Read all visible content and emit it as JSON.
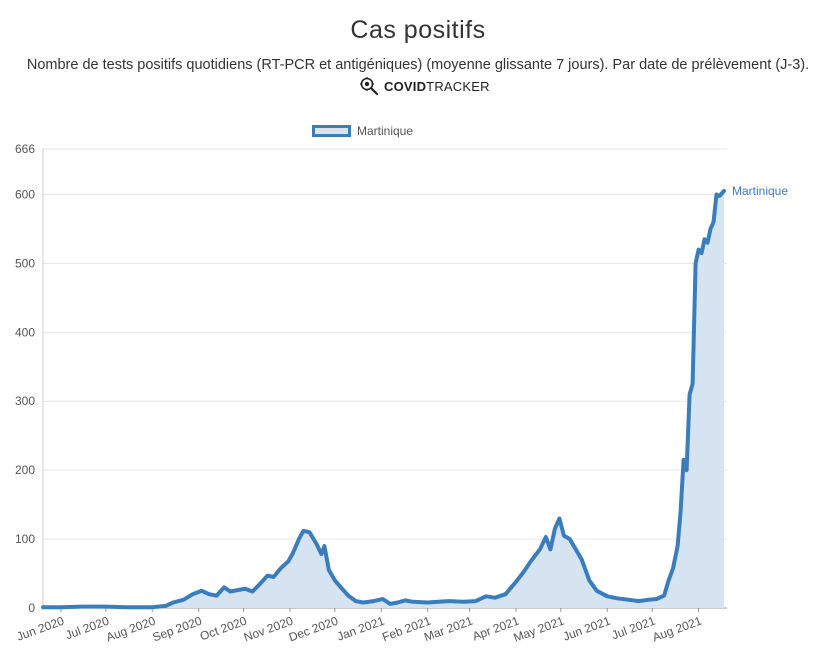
{
  "header": {
    "title": "Cas positifs",
    "subtitle": "Nombre de tests positifs quotidiens (RT-PCR et antigéniques) (moyenne glissante 7 jours). Par date de prélèvement (J-3).",
    "brand_bold": "COVID",
    "brand_light": "TRACKER",
    "brand_icon": "virus-magnifier-icon"
  },
  "colors": {
    "line": "#3a7dbd",
    "fill": "#d6e4f1",
    "grid": "#e6e6e6"
  },
  "chart_data": {
    "type": "area",
    "ylim": [
      0,
      666
    ],
    "yticks": [
      0,
      100,
      200,
      300,
      400,
      500,
      600,
      666
    ],
    "xticks": [
      "Jun 2020",
      "Jul 2020",
      "Aug 2020",
      "Sep 2020",
      "Oct 2020",
      "Nov 2020",
      "Dec 2020",
      "Jan 2021",
      "Feb 2021",
      "Mar 2021",
      "Apr 2021",
      "May 2021",
      "Jun 2021",
      "Jul 2021",
      "Aug 2021"
    ],
    "x_range": [
      "2020-05-20",
      "2021-08-20"
    ],
    "grid": true,
    "legend_position": "top",
    "series": [
      {
        "name": "Martinique",
        "points": [
          [
            "2020-05-20",
            1
          ],
          [
            "2020-06-01",
            1
          ],
          [
            "2020-06-15",
            2
          ],
          [
            "2020-07-01",
            2
          ],
          [
            "2020-07-15",
            1
          ],
          [
            "2020-08-01",
            1
          ],
          [
            "2020-08-10",
            3
          ],
          [
            "2020-08-15",
            8
          ],
          [
            "2020-08-22",
            12
          ],
          [
            "2020-08-28",
            20
          ],
          [
            "2020-09-03",
            25
          ],
          [
            "2020-09-08",
            20
          ],
          [
            "2020-09-13",
            18
          ],
          [
            "2020-09-18",
            30
          ],
          [
            "2020-09-22",
            24
          ],
          [
            "2020-09-27",
            26
          ],
          [
            "2020-10-02",
            28
          ],
          [
            "2020-10-07",
            24
          ],
          [
            "2020-10-12",
            35
          ],
          [
            "2020-10-17",
            47
          ],
          [
            "2020-10-21",
            45
          ],
          [
            "2020-10-26",
            58
          ],
          [
            "2020-10-31",
            68
          ],
          [
            "2020-11-03",
            80
          ],
          [
            "2020-11-07",
            100
          ],
          [
            "2020-11-10",
            112
          ],
          [
            "2020-11-14",
            110
          ],
          [
            "2020-11-19",
            92
          ],
          [
            "2020-11-22",
            78
          ],
          [
            "2020-11-24",
            90
          ],
          [
            "2020-11-27",
            55
          ],
          [
            "2020-12-01",
            40
          ],
          [
            "2020-12-05",
            30
          ],
          [
            "2020-12-10",
            18
          ],
          [
            "2020-12-15",
            10
          ],
          [
            "2020-12-20",
            8
          ],
          [
            "2020-12-27",
            10
          ],
          [
            "2021-01-02",
            13
          ],
          [
            "2021-01-07",
            6
          ],
          [
            "2021-01-12",
            8
          ],
          [
            "2021-01-17",
            11
          ],
          [
            "2021-01-22",
            9
          ],
          [
            "2021-02-01",
            8
          ],
          [
            "2021-02-08",
            9
          ],
          [
            "2021-02-15",
            10
          ],
          [
            "2021-02-25",
            9
          ],
          [
            "2021-03-05",
            10
          ],
          [
            "2021-03-12",
            17
          ],
          [
            "2021-03-18",
            15
          ],
          [
            "2021-03-25",
            20
          ],
          [
            "2021-04-01",
            38
          ],
          [
            "2021-04-06",
            52
          ],
          [
            "2021-04-11",
            68
          ],
          [
            "2021-04-17",
            85
          ],
          [
            "2021-04-21",
            103
          ],
          [
            "2021-04-24",
            85
          ],
          [
            "2021-04-27",
            115
          ],
          [
            "2021-04-30",
            130
          ],
          [
            "2021-05-03",
            105
          ],
          [
            "2021-05-07",
            100
          ],
          [
            "2021-05-11",
            85
          ],
          [
            "2021-05-15",
            70
          ],
          [
            "2021-05-20",
            40
          ],
          [
            "2021-05-25",
            25
          ],
          [
            "2021-06-01",
            17
          ],
          [
            "2021-06-08",
            14
          ],
          [
            "2021-06-15",
            12
          ],
          [
            "2021-06-22",
            10
          ],
          [
            "2021-06-29",
            12
          ],
          [
            "2021-07-04",
            13
          ],
          [
            "2021-07-09",
            18
          ],
          [
            "2021-07-12",
            40
          ],
          [
            "2021-07-15",
            58
          ],
          [
            "2021-07-18",
            90
          ],
          [
            "2021-07-20",
            140
          ],
          [
            "2021-07-22",
            215
          ],
          [
            "2021-07-24",
            200
          ],
          [
            "2021-07-26",
            310
          ],
          [
            "2021-07-28",
            325
          ],
          [
            "2021-07-30",
            500
          ],
          [
            "2021-08-01",
            520
          ],
          [
            "2021-08-03",
            515
          ],
          [
            "2021-08-05",
            535
          ],
          [
            "2021-08-07",
            530
          ],
          [
            "2021-08-09",
            550
          ],
          [
            "2021-08-11",
            560
          ],
          [
            "2021-08-13",
            600
          ],
          [
            "2021-08-15",
            598
          ],
          [
            "2021-08-18",
            605
          ]
        ]
      }
    ]
  }
}
